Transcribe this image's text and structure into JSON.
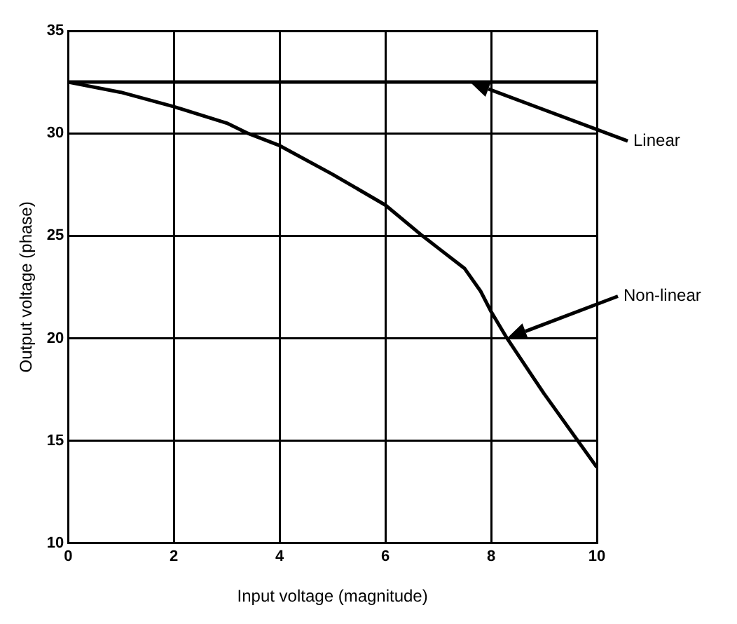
{
  "chart_data": {
    "type": "line",
    "xlabel": "Input voltage (magnitude)",
    "ylabel": "Output voltage (phase)",
    "xlim": [
      0,
      10
    ],
    "xticks": [
      0,
      2,
      4,
      6,
      8,
      10
    ],
    "ylim": [
      10,
      35
    ],
    "yticks": [
      10,
      15,
      20,
      25,
      30,
      35
    ],
    "grid": true,
    "legend": false,
    "marker": "none",
    "line_style": "solid",
    "series": [
      {
        "name": "Linear",
        "color": "#000000",
        "x": [
          0,
          10
        ],
        "values": [
          32.5,
          32.5
        ]
      },
      {
        "name": "Non-linear",
        "color": "#000000",
        "x": [
          0,
          1,
          2,
          3,
          3.4,
          4,
          5,
          6,
          6.7,
          7,
          7.5,
          7.8,
          8,
          8.3,
          9,
          10
        ],
        "values": [
          32.5,
          32.0,
          31.3,
          30.5,
          30,
          29.4,
          28.0,
          26.5,
          25,
          24.4,
          23.4,
          22.3,
          21.3,
          20,
          17.3,
          13.7
        ]
      }
    ]
  }
}
